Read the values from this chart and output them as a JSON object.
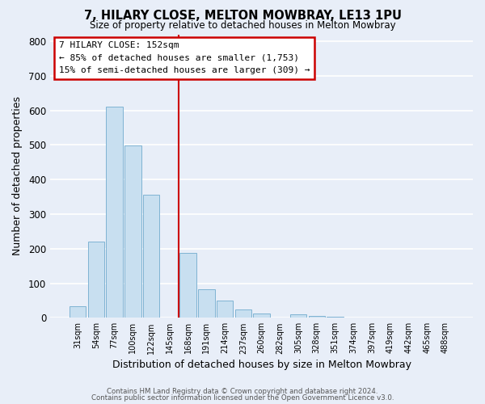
{
  "title": "7, HILARY CLOSE, MELTON MOWBRAY, LE13 1PU",
  "subtitle": "Size of property relative to detached houses in Melton Mowbray",
  "xlabel": "Distribution of detached houses by size in Melton Mowbray",
  "ylabel": "Number of detached properties",
  "bar_color": "#c8dff0",
  "bar_edge_color": "#7fb3d3",
  "background_color": "#e8eef8",
  "grid_color": "#ffffff",
  "bin_labels": [
    "31sqm",
    "54sqm",
    "77sqm",
    "100sqm",
    "122sqm",
    "145sqm",
    "168sqm",
    "191sqm",
    "214sqm",
    "237sqm",
    "260sqm",
    "282sqm",
    "305sqm",
    "328sqm",
    "351sqm",
    "374sqm",
    "397sqm",
    "419sqm",
    "442sqm",
    "465sqm",
    "488sqm"
  ],
  "bar_heights": [
    33,
    220,
    610,
    498,
    355,
    0,
    188,
    83,
    50,
    23,
    13,
    0,
    10,
    5,
    3,
    0,
    0,
    0,
    0,
    0,
    0
  ],
  "ylim": [
    0,
    820
  ],
  "yticks": [
    0,
    100,
    200,
    300,
    400,
    500,
    600,
    700,
    800
  ],
  "vline_color": "#cc0000",
  "annotation_title": "7 HILARY CLOSE: 152sqm",
  "annotation_line1": "← 85% of detached houses are smaller (1,753)",
  "annotation_line2": "15% of semi-detached houses are larger (309) →",
  "annotation_box_color": "#ffffff",
  "annotation_box_edge": "#cc0000",
  "footer1": "Contains HM Land Registry data © Crown copyright and database right 2024.",
  "footer2": "Contains public sector information licensed under the Open Government Licence v3.0."
}
